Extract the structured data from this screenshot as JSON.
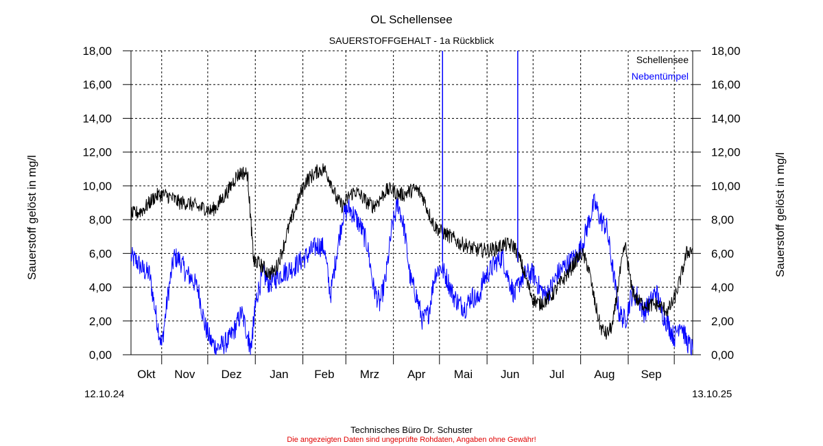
{
  "title": "OL Schellensee",
  "subtitle": "SAUERSTOFFGEHALT - 1a Rückblick",
  "footer": {
    "company": "Technisches Büro Dr. Schuster",
    "disclaimer": "Die angezeigten Daten sind ungeprüfte Rohdaten, Angaben ohne Gewähr!"
  },
  "chart_data": {
    "type": "line",
    "title": "OL Schellensee",
    "subtitle": "SAUERSTOFFGEHALT - 1a Rückblick",
    "ylabel_left": "Sauerstoff gelöst in mg/l",
    "ylabel_right": "Sauerstoff gelöst in mg/l",
    "ylim": [
      0,
      18
    ],
    "y_ticks": [
      "0,00",
      "2,00",
      "4,00",
      "6,00",
      "8,00",
      "10,00",
      "12,00",
      "14,00",
      "16,00",
      "18,00"
    ],
    "x_range": [
      "12.10.24",
      "13.10.25"
    ],
    "x_start_label": "12.10.24",
    "x_end_label": "13.10.25",
    "months": [
      "Okt",
      "Nov",
      "Dez",
      "Jan",
      "Feb",
      "Mrz",
      "Apr",
      "Mai",
      "Jun",
      "Jul",
      "Aug",
      "Sep"
    ],
    "month_starts": [
      "2024-11-01",
      "2024-12-01",
      "2025-01-01",
      "2025-02-01",
      "2025-03-01",
      "2025-04-01",
      "2025-05-01",
      "2025-06-01",
      "2025-07-01",
      "2025-08-01",
      "2025-09-01",
      "2025-10-01"
    ],
    "grid": true,
    "legend_position": "top-right",
    "series": [
      {
        "name": "Schellensee",
        "color": "#000000",
        "x": [
          "2024-10-12",
          "2024-10-16",
          "2024-10-20",
          "2024-10-24",
          "2024-10-28",
          "2024-11-01",
          "2024-11-05",
          "2024-11-09",
          "2024-11-13",
          "2024-11-17",
          "2024-11-21",
          "2024-11-25",
          "2024-11-29",
          "2024-12-03",
          "2024-12-07",
          "2024-12-11",
          "2024-12-15",
          "2024-12-19",
          "2024-12-23",
          "2024-12-27",
          "2024-12-29",
          "2024-12-31",
          "2025-01-02",
          "2025-01-06",
          "2025-01-10",
          "2025-01-14",
          "2025-01-18",
          "2025-01-22",
          "2025-01-26",
          "2025-01-30",
          "2025-02-03",
          "2025-02-07",
          "2025-02-11",
          "2025-02-15",
          "2025-02-19",
          "2025-02-23",
          "2025-02-27",
          "2025-03-03",
          "2025-03-07",
          "2025-03-11",
          "2025-03-15",
          "2025-03-19",
          "2025-03-23",
          "2025-03-27",
          "2025-03-31",
          "2025-04-04",
          "2025-04-08",
          "2025-04-12",
          "2025-04-16",
          "2025-04-20",
          "2025-04-24",
          "2025-04-28",
          "2025-05-02",
          "2025-05-06",
          "2025-05-10",
          "2025-05-14",
          "2025-05-18",
          "2025-05-22",
          "2025-05-26",
          "2025-05-30",
          "2025-06-03",
          "2025-06-07",
          "2025-06-11",
          "2025-06-15",
          "2025-06-19",
          "2025-06-23",
          "2025-06-27",
          "2025-07-01",
          "2025-07-05",
          "2025-07-09",
          "2025-07-13",
          "2025-07-17",
          "2025-07-21",
          "2025-07-25",
          "2025-07-29",
          "2025-08-02",
          "2025-08-06",
          "2025-08-10",
          "2025-08-14",
          "2025-08-18",
          "2025-08-22",
          "2025-08-26",
          "2025-08-30",
          "2025-09-03",
          "2025-09-07",
          "2025-09-11",
          "2025-09-15",
          "2025-09-19",
          "2025-09-23",
          "2025-09-27",
          "2025-10-01",
          "2025-10-05",
          "2025-10-09",
          "2025-10-13"
        ],
        "values": [
          8.3,
          8.4,
          8.6,
          9.0,
          9.4,
          9.5,
          9.4,
          9.2,
          9.0,
          9.0,
          8.9,
          8.7,
          8.7,
          8.5,
          8.8,
          9.3,
          9.8,
          10.5,
          10.8,
          10.7,
          8.0,
          5.5,
          5.5,
          5.2,
          4.8,
          5.0,
          6.0,
          7.3,
          8.4,
          9.4,
          10.3,
          10.6,
          10.9,
          11.0,
          10.3,
          9.2,
          8.8,
          9.4,
          9.7,
          9.4,
          9.0,
          8.8,
          9.2,
          9.7,
          9.8,
          9.5,
          9.5,
          9.7,
          9.8,
          9.4,
          8.4,
          7.6,
          7.3,
          7.1,
          6.9,
          6.6,
          6.5,
          6.3,
          6.2,
          6.2,
          6.2,
          6.3,
          6.5,
          6.5,
          6.4,
          5.5,
          4.3,
          3.3,
          3.0,
          3.2,
          3.5,
          4.0,
          4.5,
          5.0,
          5.6,
          6.0,
          5.2,
          3.2,
          1.6,
          1.2,
          1.8,
          4.5,
          6.5,
          4.0,
          3.2,
          3.0,
          2.9,
          3.0,
          2.8,
          2.6,
          3.3,
          4.5,
          6.0,
          6.3
        ]
      },
      {
        "name": "Nebentümpel",
        "color": "#0000ff",
        "x": [
          "2024-10-12",
          "2024-10-16",
          "2024-10-20",
          "2024-10-24",
          "2024-10-28",
          "2024-11-01",
          "2024-11-05",
          "2024-11-09",
          "2024-11-13",
          "2024-11-17",
          "2024-11-21",
          "2024-11-25",
          "2024-11-29",
          "2024-12-03",
          "2024-12-07",
          "2024-12-11",
          "2024-12-15",
          "2024-12-19",
          "2024-12-23",
          "2024-12-27",
          "2024-12-29",
          "2024-12-31",
          "2025-01-02",
          "2025-01-06",
          "2025-01-10",
          "2025-01-14",
          "2025-01-18",
          "2025-01-22",
          "2025-01-26",
          "2025-01-30",
          "2025-02-03",
          "2025-02-07",
          "2025-02-11",
          "2025-02-15",
          "2025-02-19",
          "2025-02-23",
          "2025-02-27",
          "2025-03-03",
          "2025-03-07",
          "2025-03-11",
          "2025-03-15",
          "2025-03-19",
          "2025-03-23",
          "2025-03-27",
          "2025-03-31",
          "2025-04-04",
          "2025-04-08",
          "2025-04-12",
          "2025-04-16",
          "2025-04-20",
          "2025-04-24",
          "2025-04-28",
          "2025-05-02",
          "2025-05-06",
          "2025-05-10",
          "2025-05-14",
          "2025-05-18",
          "2025-05-22",
          "2025-05-26",
          "2025-05-30",
          "2025-06-03",
          "2025-06-07",
          "2025-06-11",
          "2025-06-15",
          "2025-06-19",
          "2025-06-23",
          "2025-06-27",
          "2025-07-01",
          "2025-07-05",
          "2025-07-09",
          "2025-07-13",
          "2025-07-17",
          "2025-07-21",
          "2025-07-25",
          "2025-07-29",
          "2025-08-02",
          "2025-08-06",
          "2025-08-10",
          "2025-08-14",
          "2025-08-18",
          "2025-08-22",
          "2025-08-26",
          "2025-08-30",
          "2025-09-03",
          "2025-09-07",
          "2025-09-11",
          "2025-09-15",
          "2025-09-19",
          "2025-09-23",
          "2025-09-27",
          "2025-10-01",
          "2025-10-05",
          "2025-10-09",
          "2025-10-13"
        ],
        "values": [
          5.8,
          5.5,
          5.0,
          4.8,
          2.5,
          0.5,
          3.5,
          5.8,
          5.6,
          4.8,
          4.5,
          3.8,
          1.8,
          0.8,
          0.4,
          0.6,
          0.9,
          1.6,
          2.5,
          1.2,
          0.3,
          2.0,
          3.5,
          4.8,
          4.2,
          4.5,
          4.8,
          5.0,
          5.2,
          5.5,
          5.8,
          6.2,
          6.5,
          6.3,
          3.5,
          6.0,
          8.2,
          8.7,
          8.2,
          7.5,
          6.5,
          4.0,
          3.0,
          4.5,
          7.5,
          9.0,
          7.5,
          4.5,
          3.5,
          2.0,
          2.5,
          4.8,
          5.2,
          4.5,
          3.5,
          3.0,
          2.8,
          3.5,
          3.2,
          4.5,
          5.0,
          5.5,
          5.8,
          4.5,
          3.5,
          4.5,
          4.8,
          4.8,
          4.0,
          3.5,
          4.0,
          4.8,
          5.2,
          5.5,
          5.8,
          6.5,
          7.8,
          9.0,
          8.0,
          7.5,
          5.0,
          2.5,
          2.0,
          3.5,
          3.5,
          2.5,
          3.0,
          3.8,
          2.5,
          1.8,
          1.0,
          2.0,
          0.8,
          0.3
        ]
      }
    ],
    "spikes": [
      {
        "series": "Nebentümpel",
        "x": "2025-05-03",
        "y": 18
      },
      {
        "series": "Nebentümpel",
        "x": "2025-06-21",
        "y": 18
      }
    ]
  }
}
